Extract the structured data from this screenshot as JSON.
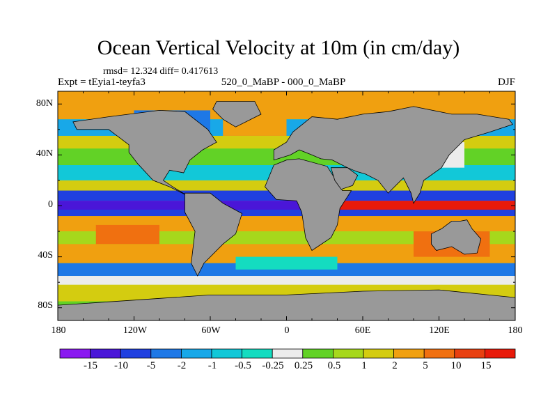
{
  "chart_data": {
    "type": "heatmap",
    "title": "Ocean Vertical Velocity at 10m (in cm/day)",
    "stats": "rmsd= 12.324 diff= 0.417613",
    "left_label": "Expt = tEyia1-teyfa3",
    "center_label": "520_0_MaBP - 000_0_MaBP",
    "right_label": "DJF",
    "x_ticks": [
      "180",
      "120W",
      "60W",
      "0",
      "60E",
      "120E",
      "180"
    ],
    "y_ticks": [
      "80N",
      "40N",
      "0",
      "40S",
      "80S"
    ],
    "xlim": [
      -180,
      180
    ],
    "ylim": [
      -90,
      90
    ],
    "colorbar": {
      "labels": [
        "-15",
        "-10",
        "-5",
        "-2",
        "-1",
        "-0.5",
        "-0.25",
        "0.25",
        "0.5",
        "1",
        "2",
        "5",
        "10",
        "15"
      ],
      "colors": [
        "#8a19f0",
        "#4a16d8",
        "#2040e0",
        "#1e78e6",
        "#18a8e8",
        "#12c8d8",
        "#14dcc0",
        "#ececec",
        "#62d226",
        "#a6d81c",
        "#d4cc10",
        "#f0a010",
        "#f07010",
        "#e84010",
        "#e81a0a"
      ]
    },
    "land_color": "#999999",
    "zonal_bands": [
      {
        "lat": [
          68,
          90
        ],
        "bin": 11
      },
      {
        "lat": [
          55,
          68
        ],
        "bin": 4
      },
      {
        "lat": [
          45,
          55
        ],
        "bin": 10
      },
      {
        "lat": [
          32,
          45
        ],
        "bin": 8
      },
      {
        "lat": [
          20,
          32
        ],
        "bin": 5
      },
      {
        "lat": [
          12,
          20
        ],
        "bin": 10
      },
      {
        "lat": [
          4,
          12
        ],
        "bin": 2
      },
      {
        "lat": [
          -2,
          4
        ],
        "bin": 0
      },
      {
        "lat": [
          -8,
          -2
        ],
        "bin": 2
      },
      {
        "lat": [
          -20,
          -8
        ],
        "bin": 11
      },
      {
        "lat": [
          -30,
          -20
        ],
        "bin": 9
      },
      {
        "lat": [
          -45,
          -30
        ],
        "bin": 11
      },
      {
        "lat": [
          -55,
          -45
        ],
        "bin": 3
      },
      {
        "lat": [
          -62,
          -55
        ],
        "bin": 7
      },
      {
        "lat": [
          -75,
          -62
        ],
        "bin": 10
      },
      {
        "lat": [
          -90,
          -75
        ],
        "bin": 8
      }
    ],
    "anomalies": [
      {
        "lon": [
          42,
          180
        ],
        "lat": [
          -3,
          4
        ],
        "bin": 14
      },
      {
        "lon": [
          -180,
          42
        ],
        "lat": [
          -3,
          4
        ],
        "bin": 1
      },
      {
        "lon": [
          -120,
          -60
        ],
        "lat": [
          50,
          75
        ],
        "bin": 3
      },
      {
        "lon": [
          -50,
          0
        ],
        "lat": [
          55,
          78
        ],
        "bin": 11
      },
      {
        "lon": [
          60,
          140
        ],
        "lat": [
          30,
          50
        ],
        "bin": 7
      },
      {
        "lon": [
          -150,
          -100
        ],
        "lat": [
          -30,
          -15
        ],
        "bin": 12
      },
      {
        "lon": [
          100,
          160
        ],
        "lat": [
          -40,
          -20
        ],
        "bin": 12
      },
      {
        "lon": [
          -40,
          40
        ],
        "lat": [
          -50,
          -40
        ],
        "bin": 6
      }
    ],
    "land_masses": [
      {
        "name": "North America",
        "points": [
          [
            -168,
            66
          ],
          [
            -140,
            70
          ],
          [
            -100,
            75
          ],
          [
            -80,
            74
          ],
          [
            -62,
            60
          ],
          [
            -55,
            50
          ],
          [
            -66,
            44
          ],
          [
            -76,
            36
          ],
          [
            -81,
            26
          ],
          [
            -92,
            28
          ],
          [
            -97,
            20
          ],
          [
            -88,
            14
          ],
          [
            -78,
            8
          ],
          [
            -92,
            15
          ],
          [
            -105,
            20
          ],
          [
            -117,
            33
          ],
          [
            -124,
            42
          ],
          [
            -124,
            48
          ],
          [
            -140,
            60
          ],
          [
            -165,
            60
          ]
        ]
      },
      {
        "name": "Greenland",
        "points": [
          [
            -55,
            82
          ],
          [
            -25,
            82
          ],
          [
            -20,
            72
          ],
          [
            -40,
            62
          ],
          [
            -50,
            68
          ],
          [
            -58,
            76
          ]
        ]
      },
      {
        "name": "South America",
        "points": [
          [
            -80,
            10
          ],
          [
            -60,
            10
          ],
          [
            -50,
            2
          ],
          [
            -35,
            -6
          ],
          [
            -40,
            -22
          ],
          [
            -50,
            -30
          ],
          [
            -65,
            -45
          ],
          [
            -70,
            -55
          ],
          [
            -75,
            -45
          ],
          [
            -72,
            -20
          ],
          [
            -80,
            -5
          ]
        ]
      },
      {
        "name": "Eurasia",
        "points": [
          [
            -10,
            36
          ],
          [
            -10,
            44
          ],
          [
            0,
            50
          ],
          [
            5,
            58
          ],
          [
            10,
            62
          ],
          [
            20,
            70
          ],
          [
            40,
            68
          ],
          [
            60,
            72
          ],
          [
            80,
            74
          ],
          [
            100,
            78
          ],
          [
            130,
            72
          ],
          [
            150,
            72
          ],
          [
            175,
            68
          ],
          [
            178,
            64
          ],
          [
            160,
            58
          ],
          [
            140,
            52
          ],
          [
            128,
            40
          ],
          [
            122,
            30
          ],
          [
            108,
            20
          ],
          [
            105,
            10
          ],
          [
            100,
            2
          ],
          [
            98,
            10
          ],
          [
            92,
            22
          ],
          [
            80,
            10
          ],
          [
            72,
            20
          ],
          [
            62,
            25
          ],
          [
            55,
            27
          ],
          [
            48,
            30
          ],
          [
            36,
            36
          ],
          [
            27,
            37
          ],
          [
            20,
            40
          ],
          [
            10,
            44
          ],
          [
            3,
            40
          ]
        ]
      },
      {
        "name": "Africa",
        "points": [
          [
            -17,
            15
          ],
          [
            -10,
            32
          ],
          [
            0,
            36
          ],
          [
            10,
            37
          ],
          [
            32,
            31
          ],
          [
            44,
            12
          ],
          [
            51,
            12
          ],
          [
            42,
            -2
          ],
          [
            40,
            -15
          ],
          [
            35,
            -25
          ],
          [
            20,
            -35
          ],
          [
            15,
            -25
          ],
          [
            12,
            -5
          ],
          [
            8,
            4
          ],
          [
            -8,
            5
          ]
        ]
      },
      {
        "name": "Arabia",
        "points": [
          [
            35,
            30
          ],
          [
            48,
            30
          ],
          [
            56,
            24
          ],
          [
            52,
            16
          ],
          [
            43,
            13
          ],
          [
            38,
            20
          ]
        ]
      },
      {
        "name": "Australia",
        "points": [
          [
            114,
            -22
          ],
          [
            122,
            -18
          ],
          [
            130,
            -12
          ],
          [
            137,
            -12
          ],
          [
            142,
            -11
          ],
          [
            146,
            -18
          ],
          [
            153,
            -26
          ],
          [
            150,
            -37
          ],
          [
            140,
            -38
          ],
          [
            130,
            -32
          ],
          [
            118,
            -35
          ],
          [
            114,
            -30
          ]
        ]
      },
      {
        "name": "Antarctica",
        "points": [
          [
            -180,
            -78
          ],
          [
            -120,
            -74
          ],
          [
            -60,
            -70
          ],
          [
            0,
            -70
          ],
          [
            60,
            -67
          ],
          [
            120,
            -66
          ],
          [
            180,
            -72
          ],
          [
            180,
            -90
          ],
          [
            -180,
            -90
          ]
        ]
      }
    ]
  }
}
